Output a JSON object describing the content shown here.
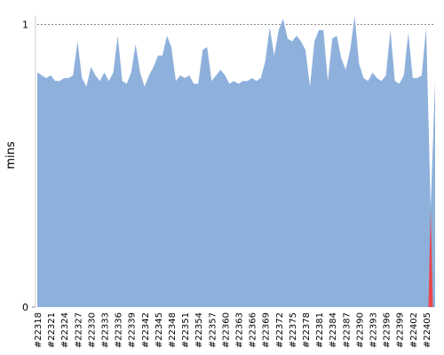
{
  "chart_data": {
    "type": "area",
    "y_label": "mins",
    "categories": [
      "#22318",
      null,
      null,
      "#22321",
      null,
      null,
      "#22324",
      null,
      null,
      "#22327",
      null,
      null,
      "#22330",
      null,
      null,
      "#22333",
      null,
      null,
      "#22336",
      null,
      null,
      "#22339",
      null,
      null,
      "#22342",
      null,
      null,
      "#22345",
      null,
      null,
      "#22348",
      null,
      null,
      "#22351",
      null,
      null,
      "#22354",
      null,
      null,
      "#22357",
      null,
      null,
      "#22360",
      null,
      null,
      "#22363",
      null,
      null,
      "#22366",
      null,
      null,
      "#22369",
      null,
      null,
      "#22372",
      null,
      null,
      "#22375",
      null,
      null,
      "#22378",
      null,
      null,
      "#22381",
      null,
      null,
      "#22384",
      null,
      null,
      "#22387",
      null,
      null,
      "#22390",
      null,
      null,
      "#22393",
      null,
      null,
      "#22396",
      null,
      null,
      "#22399",
      null,
      null,
      "#22402",
      null,
      null,
      "#22405",
      null,
      null
    ],
    "values": [
      0.83,
      0.82,
      0.81,
      0.82,
      0.8,
      0.8,
      0.81,
      0.81,
      0.82,
      0.94,
      0.81,
      0.78,
      0.85,
      0.82,
      0.8,
      0.83,
      0.8,
      0.83,
      0.96,
      0.8,
      0.79,
      0.83,
      0.93,
      0.83,
      0.78,
      0.82,
      0.85,
      0.89,
      0.89,
      0.96,
      0.92,
      0.8,
      0.82,
      0.81,
      0.82,
      0.79,
      0.79,
      0.91,
      0.92,
      0.8,
      0.82,
      0.84,
      0.82,
      0.79,
      0.8,
      0.79,
      0.8,
      0.8,
      0.81,
      0.8,
      0.81,
      0.87,
      0.99,
      0.89,
      0.98,
      1.02,
      0.95,
      0.94,
      0.96,
      0.94,
      0.91,
      0.78,
      0.94,
      0.98,
      0.98,
      0.8,
      0.95,
      0.96,
      0.88,
      0.84,
      0.91,
      1.03,
      0.86,
      0.81,
      0.8,
      0.83,
      0.81,
      0.8,
      0.82,
      0.98,
      0.8,
      0.79,
      0.82,
      0.97,
      0.81,
      0.81,
      0.82,
      0.99,
      0.35,
      0.8
    ],
    "color": "#8eb1dc",
    "failed_indices": [
      88
    ],
    "failed_color": "#e8474c",
    "ylim": [
      0,
      1.03
    ],
    "yticks": [
      0,
      1
    ],
    "grid": true
  }
}
